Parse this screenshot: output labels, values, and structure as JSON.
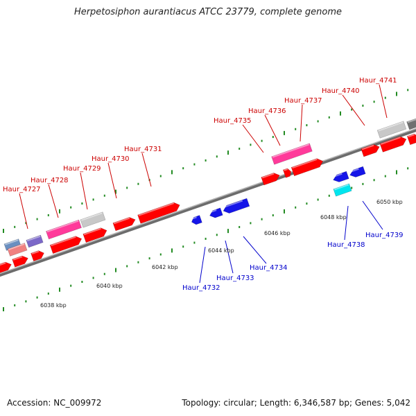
{
  "title": "Herpetosiphon aurantiacus ATCC 23779, complete genome",
  "footer": {
    "accession": "Accession: NC_009972",
    "topology": "Topology: circular; Length: 6,346,587 bp; Genes: 5,042"
  },
  "colors": {
    "forward_label": "#cc0000",
    "reverse_label": "#0000cc",
    "tick": "#228b22",
    "backbone": "#808080"
  },
  "scale_labels": [
    "6038 kbp",
    "6040 kbp",
    "6042 kbp",
    "6044 kbp",
    "6046 kbp",
    "6048 kbp",
    "6050 kbp"
  ],
  "forward_gene_labels": [
    "Haur_4727",
    "Haur_4728",
    "Haur_4729",
    "Haur_4730",
    "Haur_4731",
    "Haur_4735",
    "Haur_4736",
    "Haur_4737",
    "Haur_4740",
    "Haur_4741"
  ],
  "reverse_gene_labels": [
    "Haur_4732",
    "Haur_4733",
    "Haur_4734",
    "Haur_4738",
    "Haur_4739"
  ]
}
